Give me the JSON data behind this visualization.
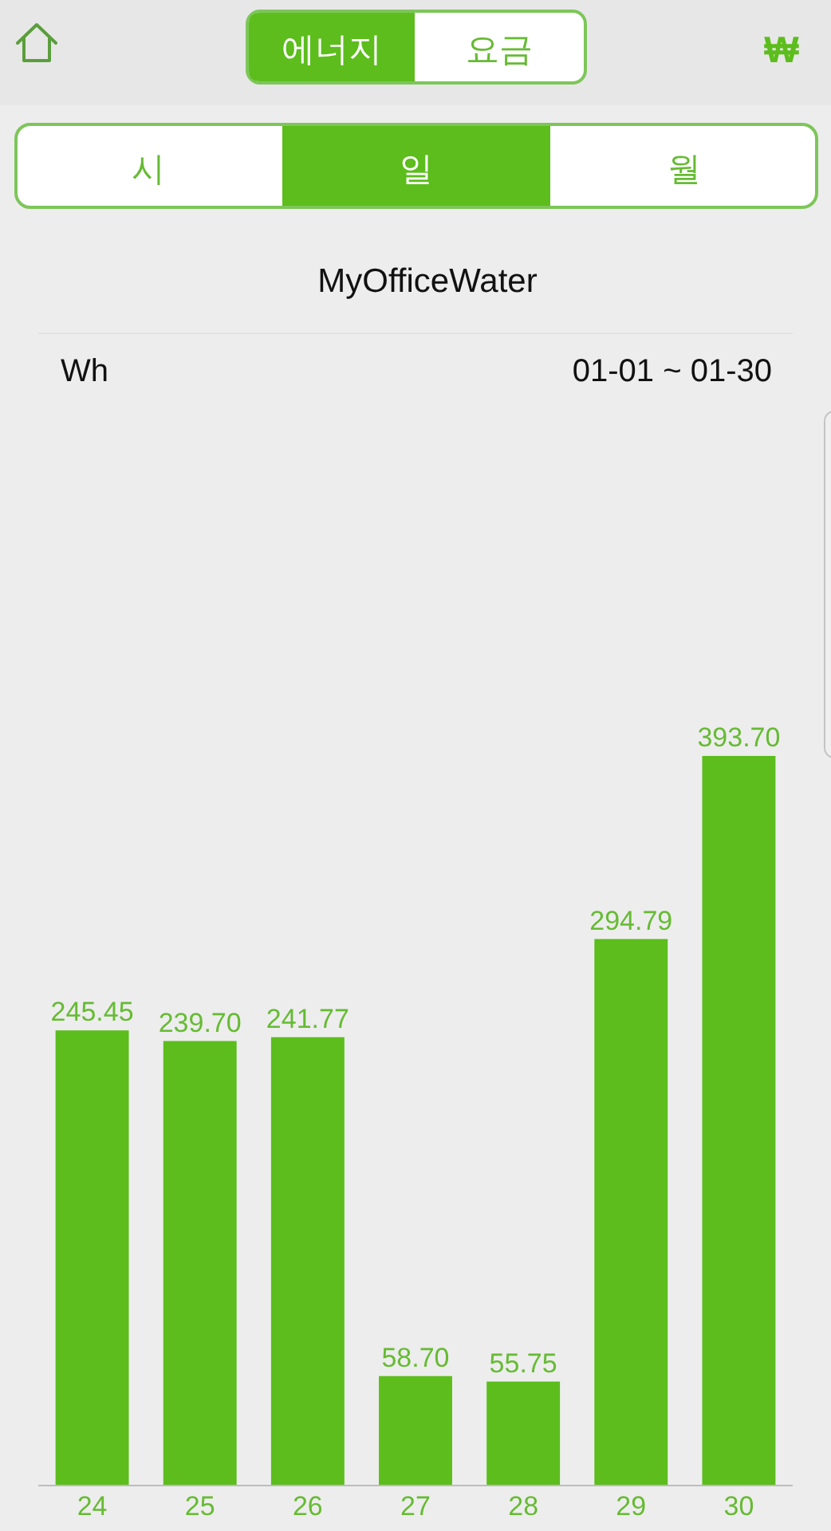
{
  "chart_data": {
    "type": "bar",
    "title": "MyOfficeWater",
    "subtitle": "01-01 ~ 01-30",
    "categories": [
      "24",
      "25",
      "26",
      "27",
      "28",
      "29",
      "30"
    ],
    "values": [
      245.45,
      239.7,
      241.77,
      58.7,
      55.75,
      294.79,
      393.7
    ],
    "value_labels": [
      "245.45",
      "239.70",
      "241.77",
      "58.70",
      "55.75",
      "294.79",
      "393.70"
    ],
    "color": "#5cbd1c",
    "annotations": [
      "에너지",
      "요금",
      "₩",
      "시",
      "일",
      "월",
      "Wh"
    ]
  }
}
